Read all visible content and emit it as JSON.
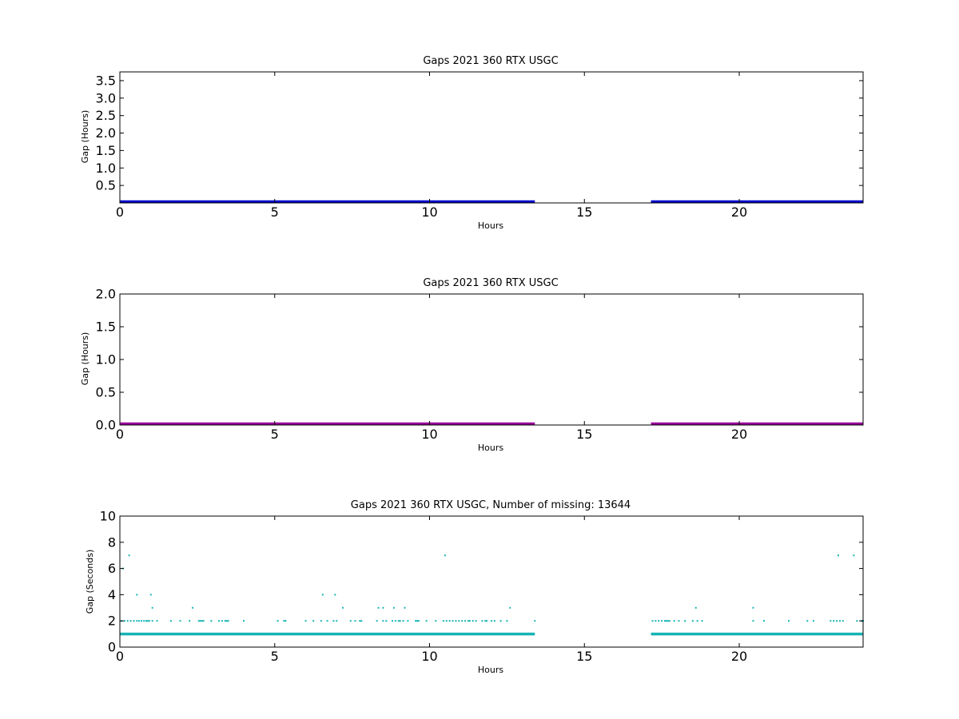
{
  "chart_data": [
    {
      "type": "line",
      "title": "Gaps 2021 360 RTX  USGC",
      "xlabel": "Hours",
      "ylabel": "Gap (Hours)",
      "xlim": [
        0,
        24
      ],
      "ylim": [
        0,
        3.75
      ],
      "xticks": [
        0,
        5,
        10,
        15,
        20
      ],
      "xtick_labels": [
        "0",
        "5",
        "10",
        "15",
        "20"
      ],
      "yticks": [
        0.5,
        1.0,
        1.5,
        2.0,
        2.5,
        3.0,
        3.5
      ],
      "ytick_labels": [
        "0.5",
        "1.0",
        "1.5",
        "2.0",
        "2.5",
        "3.0",
        "3.5"
      ],
      "grid": false,
      "color": "#0000cc",
      "series": [
        {
          "segments": [
            {
              "x": [
                0,
                13.4
              ],
              "y": [
                0.0003,
                0.0003
              ]
            },
            {
              "x": [
                17.15,
                24
              ],
              "y": [
                0.0003,
                0.0003
              ]
            }
          ]
        }
      ]
    },
    {
      "type": "line",
      "title": "Gaps 2021 360 RTX  USGC",
      "xlabel": "Hours",
      "ylabel": "Gap (Hours)",
      "xlim": [
        0,
        24
      ],
      "ylim": [
        0,
        2.0
      ],
      "xticks": [
        0,
        5,
        10,
        15,
        20
      ],
      "xtick_labels": [
        "0",
        "5",
        "10",
        "15",
        "20"
      ],
      "yticks": [
        0.0,
        0.5,
        1.0,
        1.5,
        2.0
      ],
      "ytick_labels": [
        "0.0",
        "0.5",
        "1.0",
        "1.5",
        "2.0"
      ],
      "grid": false,
      "color": "#990099",
      "series": [
        {
          "segments": [
            {
              "x": [
                0,
                13.4
              ],
              "y": [
                0.0003,
                0.0003
              ]
            },
            {
              "x": [
                17.15,
                24
              ],
              "y": [
                0.0003,
                0.0003
              ]
            }
          ]
        }
      ]
    },
    {
      "type": "scatter",
      "title": "Gaps 2021 360 RTX  USGC, Number of missing: 13644",
      "xlabel": "Hours",
      "ylabel": "Gap (Seconds)",
      "xlim": [
        0,
        24
      ],
      "ylim": [
        0,
        10
      ],
      "xticks": [
        0,
        5,
        10,
        15,
        20
      ],
      "xtick_labels": [
        "0",
        "5",
        "10",
        "15",
        "20"
      ],
      "yticks": [
        0,
        2,
        4,
        6,
        8,
        10
      ],
      "ytick_labels": [
        "0",
        "2",
        "4",
        "6",
        "8",
        "10"
      ],
      "grid": false,
      "color": "#17b3b3",
      "baseline": {
        "y": 1,
        "segments": [
          [
            0,
            13.4
          ],
          [
            17.15,
            24
          ]
        ]
      },
      "series": [
        {
          "points": [
            [
              0.1,
              6
            ],
            [
              0.3,
              7
            ],
            [
              0.55,
              4
            ],
            [
              1.0,
              4
            ],
            [
              1.05,
              3
            ],
            [
              2.35,
              3
            ],
            [
              6.55,
              4
            ],
            [
              6.95,
              4
            ],
            [
              7.2,
              3
            ],
            [
              8.35,
              3
            ],
            [
              8.5,
              3
            ],
            [
              8.85,
              3
            ],
            [
              9.2,
              3
            ],
            [
              10.5,
              7
            ],
            [
              12.6,
              3
            ],
            [
              18.6,
              3
            ],
            [
              20.45,
              3
            ],
            [
              23.2,
              7
            ],
            [
              23.7,
              7
            ],
            [
              0.05,
              2
            ],
            [
              0.15,
              2
            ],
            [
              0.25,
              2
            ],
            [
              0.35,
              2
            ],
            [
              0.45,
              2
            ],
            [
              0.55,
              2
            ],
            [
              0.62,
              2
            ],
            [
              0.7,
              2
            ],
            [
              0.78,
              2
            ],
            [
              0.85,
              2
            ],
            [
              0.9,
              2
            ],
            [
              0.95,
              2
            ],
            [
              1.05,
              2
            ],
            [
              1.2,
              2
            ],
            [
              1.65,
              2
            ],
            [
              1.95,
              2
            ],
            [
              2.25,
              2
            ],
            [
              2.55,
              2
            ],
            [
              2.6,
              2
            ],
            [
              2.65,
              2
            ],
            [
              2.7,
              2
            ],
            [
              2.95,
              2
            ],
            [
              3.2,
              2
            ],
            [
              3.3,
              2
            ],
            [
              3.4,
              2
            ],
            [
              3.45,
              2
            ],
            [
              3.5,
              2
            ],
            [
              4.0,
              2
            ],
            [
              5.1,
              2
            ],
            [
              5.3,
              2
            ],
            [
              5.35,
              2
            ],
            [
              6.0,
              2
            ],
            [
              6.25,
              2
            ],
            [
              6.5,
              2
            ],
            [
              6.7,
              2
            ],
            [
              6.9,
              2
            ],
            [
              7.0,
              2
            ],
            [
              7.45,
              2
            ],
            [
              7.6,
              2
            ],
            [
              7.75,
              2
            ],
            [
              7.8,
              2
            ],
            [
              8.3,
              2
            ],
            [
              8.5,
              2
            ],
            [
              8.6,
              2
            ],
            [
              8.8,
              2
            ],
            [
              8.9,
              2
            ],
            [
              9.0,
              2
            ],
            [
              9.05,
              2
            ],
            [
              9.15,
              2
            ],
            [
              9.3,
              2
            ],
            [
              9.55,
              2
            ],
            [
              9.6,
              2
            ],
            [
              9.65,
              2
            ],
            [
              9.9,
              2
            ],
            [
              10.2,
              2
            ],
            [
              10.45,
              2
            ],
            [
              10.55,
              2
            ],
            [
              10.65,
              2
            ],
            [
              10.75,
              2
            ],
            [
              10.85,
              2
            ],
            [
              10.95,
              2
            ],
            [
              11.05,
              2
            ],
            [
              11.15,
              2
            ],
            [
              11.25,
              2
            ],
            [
              11.3,
              2
            ],
            [
              11.4,
              2
            ],
            [
              11.5,
              2
            ],
            [
              11.7,
              2
            ],
            [
              11.8,
              2
            ],
            [
              11.85,
              2
            ],
            [
              12.0,
              2
            ],
            [
              12.1,
              2
            ],
            [
              12.3,
              2
            ],
            [
              12.5,
              2
            ],
            [
              13.4,
              2
            ],
            [
              17.2,
              2
            ],
            [
              17.3,
              2
            ],
            [
              17.4,
              2
            ],
            [
              17.5,
              2
            ],
            [
              17.6,
              2
            ],
            [
              17.65,
              2
            ],
            [
              17.7,
              2
            ],
            [
              17.75,
              2
            ],
            [
              17.9,
              2
            ],
            [
              18.05,
              2
            ],
            [
              18.25,
              2
            ],
            [
              18.5,
              2
            ],
            [
              18.65,
              2
            ],
            [
              18.8,
              2
            ],
            [
              20.45,
              2
            ],
            [
              20.8,
              2
            ],
            [
              21.6,
              2
            ],
            [
              22.2,
              2
            ],
            [
              22.4,
              2
            ],
            [
              22.95,
              2
            ],
            [
              23.05,
              2
            ],
            [
              23.15,
              2
            ],
            [
              23.25,
              2
            ],
            [
              23.35,
              2
            ],
            [
              23.8,
              2
            ],
            [
              23.95,
              2
            ],
            [
              24.0,
              2
            ]
          ]
        }
      ]
    }
  ]
}
